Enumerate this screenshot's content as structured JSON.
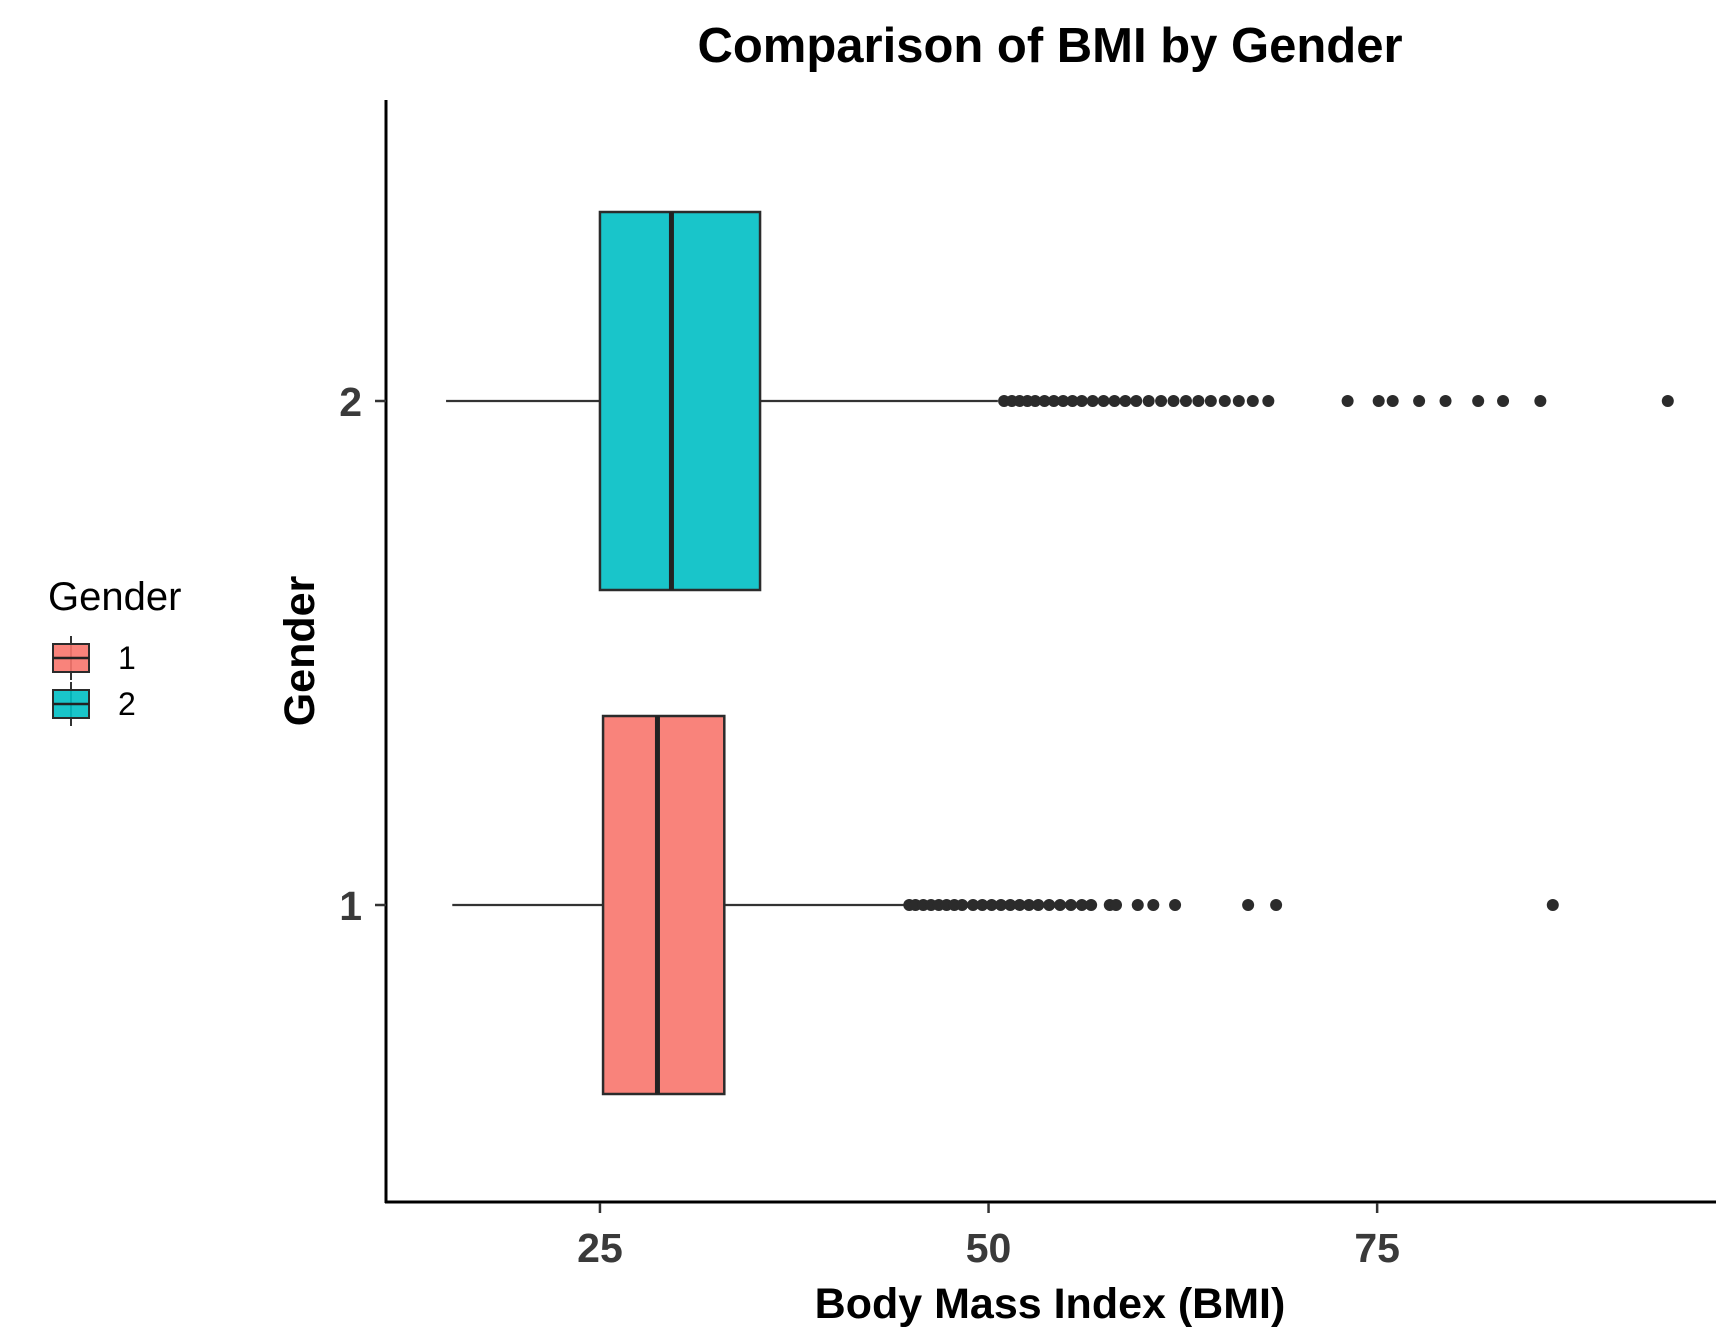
{
  "chart_data": {
    "type": "boxplot",
    "orientation": "horizontal",
    "title": "Comparison of BMI by Gender",
    "xlabel": "Body Mass Index (BMI)",
    "ylabel": "Gender",
    "xlim": [
      11.3,
      96.8
    ],
    "xticks": [
      25,
      50,
      75
    ],
    "xtick_labels": [
      "25",
      "50",
      "75"
    ],
    "categories": [
      "1",
      "2"
    ],
    "grid": false,
    "legend": {
      "title": "Gender",
      "position": "left",
      "entries": [
        {
          "label": "1",
          "color": "#F8766D"
        },
        {
          "label": "2",
          "color": "#00BFC4"
        }
      ]
    },
    "series": [
      {
        "name": "1",
        "color": "#F8766D",
        "whisker_low": 15.5,
        "q1": 25.2,
        "median": 28.7,
        "q3": 33.0,
        "whisker_high": 44.6,
        "outliers": [
          44.9,
          45.3,
          45.8,
          46.3,
          46.8,
          47.3,
          47.8,
          48.3,
          49.0,
          49.6,
          50.2,
          50.8,
          51.4,
          52.0,
          52.6,
          53.2,
          53.9,
          54.6,
          55.3,
          56.0,
          56.6,
          57.8,
          58.2,
          59.6,
          60.6,
          62.0,
          66.7,
          68.5,
          86.3
        ]
      },
      {
        "name": "2",
        "color": "#00BFC4",
        "whisker_low": 15.1,
        "q1": 25.0,
        "median": 29.6,
        "q3": 35.3,
        "whisker_high": 50.6,
        "outliers": [
          51.0,
          51.5,
          52.0,
          52.5,
          53.0,
          53.6,
          54.2,
          54.8,
          55.4,
          56.0,
          56.7,
          57.4,
          58.1,
          58.8,
          59.5,
          60.3,
          61.1,
          61.9,
          62.7,
          63.5,
          64.3,
          65.2,
          66.1,
          67.0,
          68.0,
          73.1,
          75.1,
          76.0,
          77.7,
          79.4,
          81.5,
          83.1,
          85.5,
          93.7
        ]
      }
    ]
  }
}
